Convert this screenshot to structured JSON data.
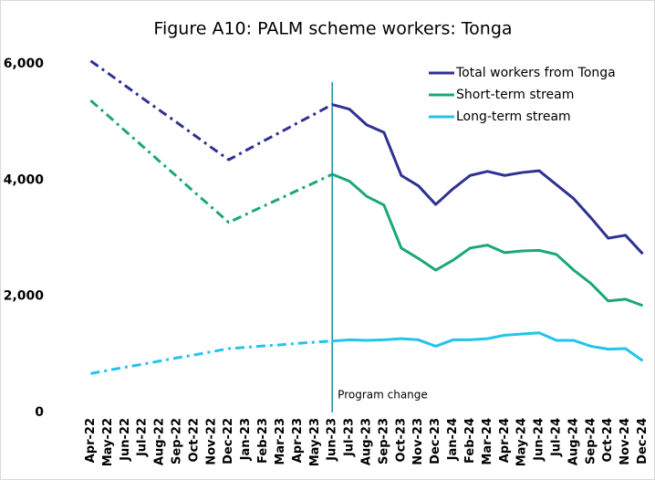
{
  "chart_data": {
    "type": "line",
    "title": "Figure A10: PALM scheme workers: Tonga",
    "categories": [
      "Apr-22",
      "May-22",
      "Jun-22",
      "Jul-22",
      "Aug-22",
      "Sep-22",
      "Oct-22",
      "Nov-22",
      "Dec-22",
      "Jan-23",
      "Feb-23",
      "Mar-23",
      "Apr-23",
      "May-23",
      "Jun-23",
      "Jul-23",
      "Aug-23",
      "Sep-23",
      "Oct-23",
      "Nov-23",
      "Dec-23",
      "Jan-24",
      "Feb-24",
      "Mar-24",
      "Apr-24",
      "May-24",
      "Jun-24",
      "Jul-24",
      "Aug-24",
      "Sep-24",
      "Oct-24",
      "Nov-24",
      "Dec-24"
    ],
    "series": [
      {
        "name": "Total workers from Tonga",
        "color": "#2e3192",
        "values": [
          6050,
          5840,
          5625,
          5410,
          5200,
          4990,
          4775,
          4560,
          4350,
          4510,
          4670,
          4825,
          4985,
          5140,
          5300,
          5220,
          4950,
          4820,
          4080,
          3900,
          3580,
          3850,
          4080,
          4150,
          4080,
          4130,
          4160,
          3920,
          3680,
          3350,
          3000,
          3050,
          2730
        ]
      },
      {
        "name": "Short-term stream",
        "color": "#1aa77a",
        "values": [
          5370,
          5110,
          4845,
          4585,
          4320,
          4060,
          3795,
          3535,
          3270,
          3410,
          3550,
          3685,
          3825,
          3960,
          4100,
          3980,
          3720,
          3570,
          2830,
          2650,
          2450,
          2620,
          2830,
          2880,
          2750,
          2780,
          2790,
          2720,
          2450,
          2220,
          1920,
          1950,
          1840
        ]
      },
      {
        "name": "Long-term stream",
        "color": "#22c4ec",
        "values": [
          670,
          725,
          780,
          830,
          885,
          940,
          990,
          1045,
          1100,
          1120,
          1145,
          1165,
          1190,
          1210,
          1230,
          1250,
          1240,
          1250,
          1270,
          1250,
          1140,
          1250,
          1250,
          1270,
          1330,
          1350,
          1370,
          1240,
          1240,
          1140,
          1090,
          1100,
          890
        ]
      }
    ],
    "annotation": {
      "text": "Program change",
      "x": "Jun-23",
      "color": "#1a8bb0"
    },
    "ylim": [
      0,
      6000
    ],
    "yticks": [
      0,
      {
        "value": 2000,
        "label": "2,000"
      },
      {
        "value": 4000,
        "label": "4,000"
      },
      {
        "value": 6000,
        "label": "6,000"
      }
    ],
    "legend": "top-right"
  }
}
